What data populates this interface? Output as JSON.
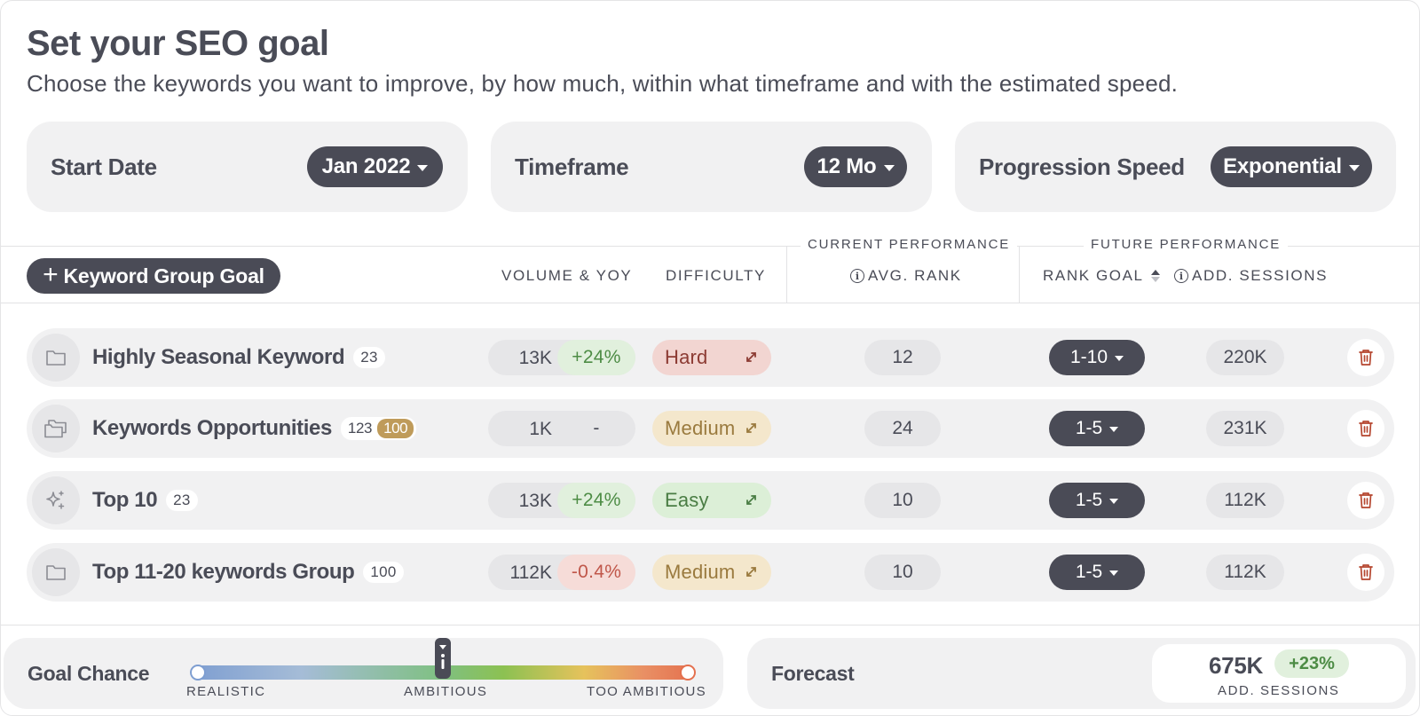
{
  "header": {
    "title": "Set your SEO goal",
    "subtitle": "Choose the keywords you want to improve, by how much, within what timeframe and with the estimated speed."
  },
  "settings": {
    "start_date": {
      "label": "Start Date",
      "value": "Jan 2022"
    },
    "timeframe": {
      "label": "Timeframe",
      "value": "12 Mo"
    },
    "speed": {
      "label": "Progression Speed",
      "value": "Exponential"
    }
  },
  "table": {
    "add_button": "Keyword Group Goal",
    "group_headers": {
      "current": "CURRENT PERFORMANCE",
      "future": "FUTURE PERFORMANCE"
    },
    "columns": {
      "volume": "VOLUME & YOY",
      "difficulty": "DIFFICULTY",
      "avg_rank": "AVG. RANK",
      "rank_goal": "RANK GOAL",
      "add_sessions": "ADD. SESSIONS"
    },
    "rows": [
      {
        "name": "Highly Seasonal Keyword",
        "count": "23",
        "badge": "",
        "icon": "folder-icon",
        "volume": "13K",
        "yoy": "+24%",
        "yoy_trend": "up",
        "difficulty": "Hard",
        "avg_rank": "12",
        "rank_goal": "1-10",
        "add_sessions": "220K"
      },
      {
        "name": "Keywords Opportunities",
        "count": "123",
        "badge": "100",
        "icon": "folders-icon",
        "volume": "1K",
        "yoy": "-",
        "yoy_trend": "none",
        "difficulty": "Medium",
        "avg_rank": "24",
        "rank_goal": "1-5",
        "add_sessions": "231K"
      },
      {
        "name": "Top 10",
        "count": "23",
        "badge": "",
        "icon": "sparkle-icon",
        "volume": "13K",
        "yoy": "+24%",
        "yoy_trend": "up",
        "difficulty": "Easy",
        "avg_rank": "10",
        "rank_goal": "1-5",
        "add_sessions": "112K"
      },
      {
        "name": "Top 11-20 keywords Group",
        "count": "100",
        "badge": "",
        "icon": "folder-icon",
        "volume": "112K",
        "yoy": "-0.4%",
        "yoy_trend": "down",
        "difficulty": "Medium",
        "avg_rank": "10",
        "rank_goal": "1-5",
        "add_sessions": "112K"
      }
    ]
  },
  "footer": {
    "goal_chance": {
      "label": "Goal Chance",
      "scale": [
        "REALISTIC",
        "AMBITIOUS",
        "TOO AMBITIOUS"
      ],
      "level": 0.5
    },
    "forecast": {
      "label": "Forecast",
      "value": "675K",
      "delta": "+23%",
      "sub": "ADD. SESSIONS"
    }
  },
  "colors": {
    "dark_pill": "#4a4b56",
    "panel": "#f1f1f2",
    "positive": "#4d8c45",
    "negative": "#c0574a",
    "hard": "#8c3b33",
    "medium": "#9a7a3e",
    "easy": "#4a7d44",
    "trash": "#b5462f"
  }
}
